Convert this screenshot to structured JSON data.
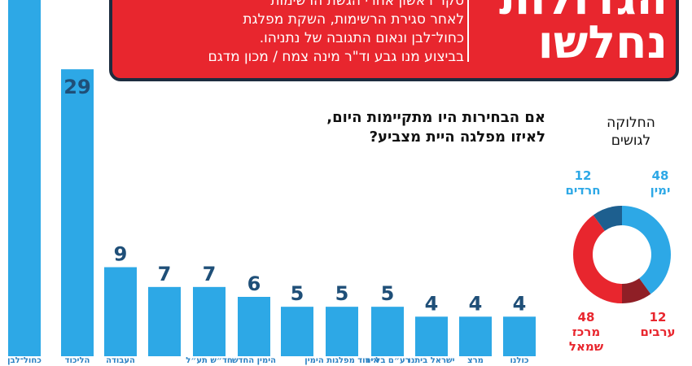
{
  "header": {
    "title_lines": [
      "הגדולות",
      "נחלשו"
    ],
    "subtitle_lines": [
      "סקר ראשון אחרי הגשת הרשימות",
      "לאחר סגירת הרשימות, השקת מפלגת",
      "כחול־לבן ונאום התגובה של נתניהו.",
      "בביצוע מנו גבע וד\"ר מינה צמח / מכון מדגם"
    ]
  },
  "question": {
    "lines": [
      "אם הבחירות היו מתקיימות היום,",
      "לאיזו מפלגה היית מצביע?"
    ]
  },
  "blocs": {
    "title_lines": [
      "החלוקה",
      "לגושים"
    ],
    "items": [
      {
        "seats": "48",
        "name": "ימין",
        "color": "#2da8e6"
      },
      {
        "seats": "12",
        "name": "חרדים",
        "color": "#1d5f8f"
      },
      {
        "seats": "48",
        "name": "מרכז שמאל",
        "color": "#e8262e"
      },
      {
        "seats": "12",
        "name": "ערבים",
        "color": "#8f1f26"
      }
    ]
  },
  "chart_data": {
    "type": "bar",
    "values": [
      36,
      29,
      9,
      7,
      7,
      6,
      5,
      5,
      5,
      4,
      4,
      4
    ],
    "value_labels": [
      "",
      "29",
      "9",
      "7",
      "7",
      "6",
      "5",
      "5",
      "5",
      "4",
      "4",
      "4"
    ],
    "categories": [
      "כחול־לבן",
      "הליכוד",
      "העבודה",
      "",
      "חד״ש תע״ל",
      "הימין החדש",
      "",
      "איחוד מפלגות הימין",
      "רע״ם בל״ד",
      "ישראל ביתנו",
      "מרצ",
      "כולנו"
    ],
    "bar_color": "#2da8e6",
    "ylim": [
      0,
      36
    ]
  },
  "colors": {
    "header_red": "#e8262e",
    "header_border": "#1d2c3f",
    "bar_blue": "#2da8e6",
    "value_navy": "#1f4f78"
  }
}
